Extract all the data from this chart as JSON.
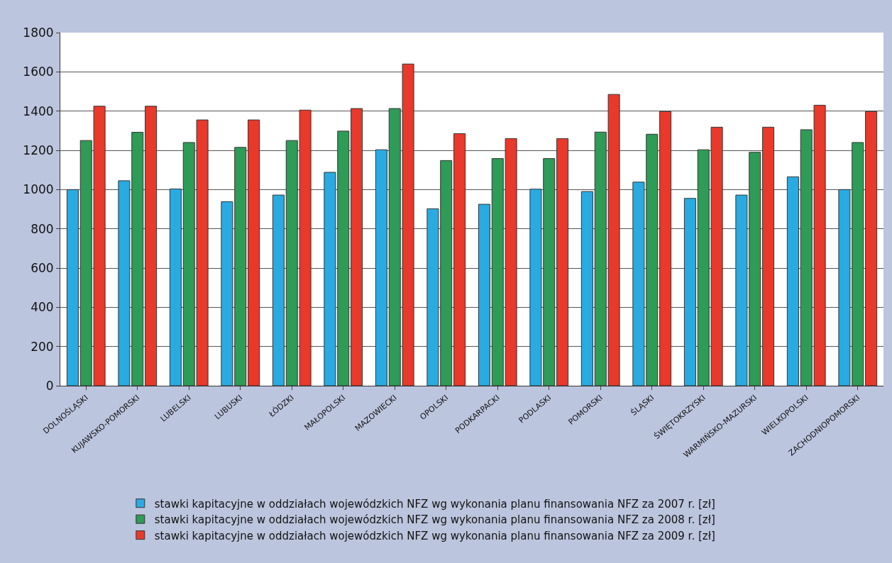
{
  "chart_data": {
    "type": "bar",
    "categories": [
      "DOLNOŚLĄSKI",
      "KUJAWSKO-POMORSKI",
      "LUBELSKI",
      "LUBUSKI",
      "ŁÓDZKI",
      "MAŁOPOLSKI",
      "MAZOWIECKI",
      "OPOLSKI",
      "PODKARPACKI",
      "PODLASKI",
      "POMORSKI",
      "ŚLĄSKI",
      "ŚWIĘTOKRZYSKI",
      "WARMIŃSKO-MAZURSKI",
      "WIELKOPOLSKI",
      "ZACHODNIOPOMORSKI"
    ],
    "series": [
      {
        "name": "stawki kapitacyjne w oddziałach wojewódzkich NFZ wg wykonania planu finansowania NFZ za 2007 r. [zł]",
        "color": "#29abe2",
        "values": [
          1000,
          1045,
          1003,
          938,
          972,
          1088,
          1203,
          902,
          925,
          1002,
          990,
          1038,
          955,
          972,
          1065,
          1000
        ]
      },
      {
        "name": "stawki kapitacyjne w oddziałach wojewódzkich NFZ wg wykonania planu finansowania NFZ za 2008 r. [zł]",
        "color": "#2e9b57",
        "values": [
          1250,
          1292,
          1240,
          1215,
          1250,
          1298,
          1413,
          1148,
          1158,
          1158,
          1293,
          1282,
          1203,
          1190,
          1305,
          1240
        ]
      },
      {
        "name": "stawki kapitacyjne w oddziałach wojewódzkich NFZ wg wykonania planu finansowania NFZ za 2009 r. [zł]",
        "color": "#e8392b",
        "values": [
          1425,
          1425,
          1355,
          1355,
          1405,
          1413,
          1640,
          1285,
          1260,
          1260,
          1485,
          1398,
          1318,
          1318,
          1430,
          1398
        ]
      }
    ],
    "ylim": [
      0,
      1800
    ],
    "yticks": [
      0,
      200,
      400,
      600,
      800,
      1000,
      1200,
      1400,
      1600,
      1800
    ],
    "grid": "y",
    "legend": "bottom"
  }
}
